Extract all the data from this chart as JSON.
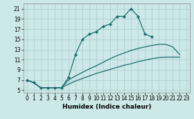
{
  "xlabel": "Humidex (Indice chaleur)",
  "bg_color": "#cce8e8",
  "grid_color": "#aacccc",
  "line_color": "#1a6b6b",
  "xlim": [
    -0.5,
    23.5
  ],
  "ylim": [
    4.5,
    22.0
  ],
  "xticks": [
    0,
    1,
    2,
    3,
    4,
    5,
    6,
    7,
    8,
    9,
    10,
    11,
    12,
    13,
    14,
    15,
    16,
    17,
    18,
    19,
    20,
    21,
    22,
    23
  ],
  "yticks": [
    5,
    7,
    9,
    11,
    13,
    15,
    17,
    19,
    21
  ],
  "series1_x": [
    0,
    1,
    2,
    3,
    4,
    5,
    6,
    7,
    8,
    9,
    10,
    11,
    12,
    13,
    14,
    15,
    16,
    17,
    18
  ],
  "series1_y": [
    7,
    6.5,
    5.5,
    5.5,
    5.5,
    5.5,
    7.5,
    12,
    15,
    16,
    16.5,
    17.5,
    18,
    19.5,
    19.5,
    21,
    19.5,
    16,
    15.5
  ],
  "series2_x": [
    0,
    1,
    2,
    3,
    4,
    5,
    6,
    7,
    8,
    9,
    10,
    11,
    12,
    13,
    14,
    15,
    16,
    17,
    18,
    19,
    20,
    21,
    22
  ],
  "series2_y": [
    7,
    6.5,
    5.5,
    5.5,
    5.5,
    5.5,
    7.0,
    7.8,
    8.5,
    9.2,
    9.8,
    10.5,
    11.2,
    11.8,
    12.3,
    12.8,
    13.2,
    13.5,
    13.8,
    14.0,
    14.0,
    13.5,
    12.0
  ],
  "series3_x": [
    0,
    1,
    2,
    3,
    4,
    5,
    6,
    7,
    8,
    9,
    10,
    11,
    12,
    13,
    14,
    15,
    16,
    17,
    18,
    19,
    20,
    21,
    22
  ],
  "series3_y": [
    7,
    6.5,
    5.5,
    5.5,
    5.5,
    5.5,
    6.2,
    6.8,
    7.3,
    7.8,
    8.3,
    8.7,
    9.1,
    9.5,
    9.9,
    10.2,
    10.6,
    10.9,
    11.2,
    11.4,
    11.5,
    11.5,
    11.5
  ],
  "tick_fontsize": 5.5,
  "xlabel_fontsize": 6.5
}
